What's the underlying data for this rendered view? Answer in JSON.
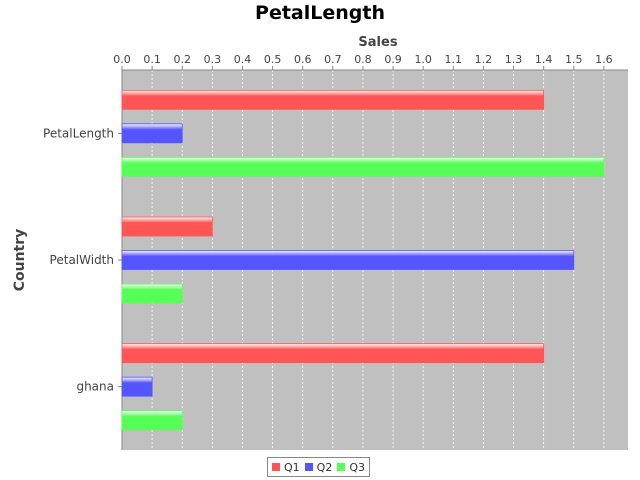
{
  "chart_data": {
    "type": "bar",
    "orientation": "horizontal",
    "title": "PetalLength",
    "xlabel": "Sales",
    "ylabel": "Country",
    "categories": [
      "PetalLength",
      "PetalWidth",
      "ghana"
    ],
    "series": [
      {
        "name": "Q1",
        "color": "#ff5555",
        "values": [
          1.4,
          0.3,
          1.4
        ]
      },
      {
        "name": "Q2",
        "color": "#5555ff",
        "values": [
          0.2,
          1.5,
          0.1
        ]
      },
      {
        "name": "Q3",
        "color": "#55ff55",
        "values": [
          1.6,
          0.2,
          0.2
        ]
      }
    ],
    "xlim": [
      0,
      1.68
    ],
    "ticks": [
      "0.0",
      "0.1",
      "0.2",
      "0.3",
      "0.4",
      "0.5",
      "0.6",
      "0.7",
      "0.8",
      "0.9",
      "1.0",
      "1.1",
      "1.2",
      "1.3",
      "1.4",
      "1.5",
      "1.6"
    ],
    "grid": true,
    "axis_position": "top",
    "legend_position": "bottom",
    "plot_background": "#c0c0c0"
  }
}
